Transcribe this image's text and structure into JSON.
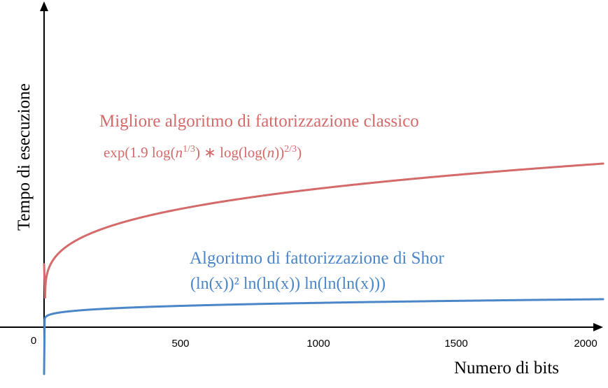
{
  "chart_data": {
    "type": "line",
    "xlabel": "Numero di bits",
    "ylabel": "Tempo di esecuzione",
    "xlim": [
      0,
      2000
    ],
    "x_ticks": [
      "0",
      "500",
      "1000",
      "1500",
      "2000"
    ],
    "grid": false,
    "colors": {
      "classical": "#d46a6a",
      "shor": "#4a86c8"
    },
    "series": [
      {
        "key": "classical",
        "name": "Migliore algoritmo di fattorizzazione classico",
        "formula": "exp(1.9 log(n^{1/3}) * log(log(n))^{2/3})"
      },
      {
        "key": "shor",
        "name": "Algoritmo di fattorizzazione di Shor",
        "formula": "(ln(x))² ln(ln(x)) ln(ln(ln(x)))"
      }
    ]
  }
}
